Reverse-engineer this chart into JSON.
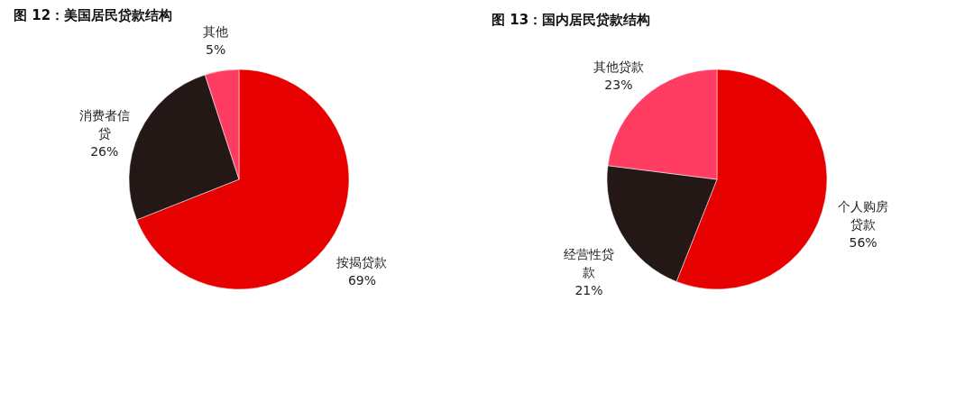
{
  "chart_data": [
    {
      "type": "pie",
      "title": "图 12：美国居民贷款结构",
      "categories": [
        "按揭贷款",
        "消费者信贷",
        "其他"
      ],
      "values": [
        69,
        26,
        5
      ],
      "colors": [
        "#e60000",
        "#231815",
        "#ff3d63"
      ],
      "value_labels": [
        "69%",
        "26%",
        "5%"
      ],
      "legend": false
    },
    {
      "type": "pie",
      "title": "图 13：国内居民贷款结构",
      "categories": [
        "个人购房贷款",
        "经营性贷款",
        "其他贷款"
      ],
      "values": [
        56,
        21,
        23
      ],
      "colors": [
        "#e60000",
        "#231815",
        "#ff3d63"
      ],
      "value_labels": [
        "56%",
        "21%",
        "23%"
      ],
      "legend": false
    }
  ]
}
